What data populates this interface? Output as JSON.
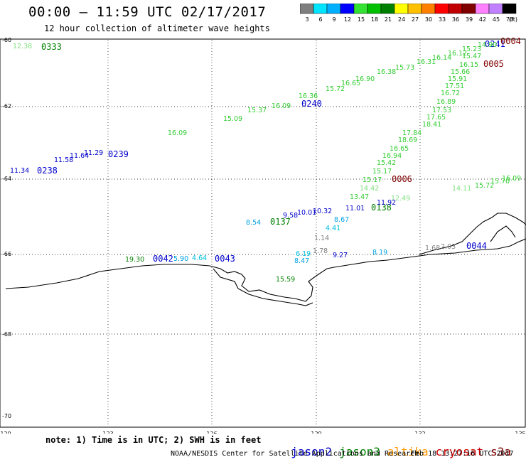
{
  "header": {
    "title": "00:00 – 11:59 UTC 02/17/2017",
    "subtitle": "12 hour collection of altimeter wave heights"
  },
  "colorbar": {
    "colors": [
      "#7f7f7f",
      "#00e5ff",
      "#00b0ff",
      "#0000ff",
      "#33e233",
      "#00c000",
      "#008000",
      "#ffff00",
      "#ffc000",
      "#ff8000",
      "#ff0000",
      "#c00000",
      "#800000",
      "#ff80ff",
      "#c080ff",
      "#000000"
    ],
    "labels": [
      "3",
      "6",
      "9",
      "12",
      "15",
      "18",
      "21",
      "24",
      "27",
      "30",
      "33",
      "36",
      "39",
      "42",
      "45",
      "70"
    ],
    "unit": "(ft)"
  },
  "axes": {
    "lon_ticks": [
      "120",
      "123",
      "126",
      "129",
      "132",
      "135"
    ],
    "lat_ticks": [
      "-60",
      "-62",
      "-64",
      "-66",
      "-68",
      "-70"
    ]
  },
  "footer": {
    "note": "note: 1) Time is in UTC; 2) SWH is in feet",
    "credit": "NOAA/NESDIS Center for Satellite Applications and Research",
    "timestamp": "Feb 18 13:27:16 UTC 2017"
  },
  "legend": [
    {
      "name": "jason2",
      "color": "#0000cc"
    },
    {
      "name": "jason3",
      "color": "#008000"
    },
    {
      "name": "altika",
      "color": "#ff9900"
    },
    {
      "name": "cryosat",
      "color": "#cc0000"
    },
    {
      "name": "s3a",
      "color": "#800000"
    }
  ],
  "track_labels": [
    {
      "text": "0333",
      "color": "#008000"
    },
    {
      "text": "0238",
      "color": "#0000cc"
    },
    {
      "text": "0239",
      "color": "#0000cc"
    },
    {
      "text": "0240",
      "color": "#0000cc"
    },
    {
      "text": "0241",
      "color": "#0000cc"
    },
    {
      "text": "0004",
      "color": "#800000"
    },
    {
      "text": "0005",
      "color": "#800000"
    },
    {
      "text": "0006",
      "color": "#800000"
    },
    {
      "text": "0137",
      "color": "#008000"
    },
    {
      "text": "0138",
      "color": "#008000"
    },
    {
      "text": "0042",
      "color": "#0000cc"
    },
    {
      "text": "0043",
      "color": "#0000cc"
    },
    {
      "text": "0044",
      "color": "#0000cc"
    }
  ],
  "wave_values": [
    {
      "text": "12.38",
      "color": "#80e080"
    },
    {
      "text": "11.34",
      "color": "#0000cc"
    },
    {
      "text": "11.58",
      "color": "#0000cc"
    },
    {
      "text": "11.64",
      "color": "#0000cc"
    },
    {
      "text": "11.29",
      "color": "#0000cc"
    },
    {
      "text": "16.09",
      "color": "#33cc33"
    },
    {
      "text": "15.09",
      "color": "#33cc33"
    },
    {
      "text": "15.37",
      "color": "#33cc33"
    },
    {
      "text": "16.09",
      "color": "#33cc33"
    },
    {
      "text": "16.36",
      "color": "#33cc33"
    },
    {
      "text": "15.72",
      "color": "#33cc33"
    },
    {
      "text": "16.65",
      "color": "#33cc33"
    },
    {
      "text": "16.90",
      "color": "#33cc33"
    },
    {
      "text": "16.38",
      "color": "#33cc33"
    },
    {
      "text": "15.73",
      "color": "#33cc33"
    },
    {
      "text": "16.31",
      "color": "#33cc33"
    },
    {
      "text": "16.14",
      "color": "#33cc33"
    },
    {
      "text": "16.12",
      "color": "#33cc33"
    },
    {
      "text": "15.23",
      "color": "#33cc33"
    },
    {
      "text": "14.90",
      "color": "#33cc33"
    },
    {
      "text": "15.47",
      "color": "#33cc33"
    },
    {
      "text": "16.15",
      "color": "#33cc33"
    },
    {
      "text": "15.66",
      "color": "#33cc33"
    },
    {
      "text": "15.91",
      "color": "#33cc33"
    },
    {
      "text": "17.51",
      "color": "#33cc33"
    },
    {
      "text": "16.72",
      "color": "#33cc33"
    },
    {
      "text": "16.89",
      "color": "#33cc33"
    },
    {
      "text": "17.53",
      "color": "#33cc33"
    },
    {
      "text": "17.65",
      "color": "#33cc33"
    },
    {
      "text": "18.41",
      "color": "#33cc33"
    },
    {
      "text": "17.84",
      "color": "#33cc33"
    },
    {
      "text": "18.69",
      "color": "#33cc33"
    },
    {
      "text": "16.65",
      "color": "#33cc33"
    },
    {
      "text": "16.94",
      "color": "#33cc33"
    },
    {
      "text": "15.42",
      "color": "#33cc33"
    },
    {
      "text": "15.17",
      "color": "#33cc33"
    },
    {
      "text": "15.17",
      "color": "#33cc33"
    },
    {
      "text": "14.42",
      "color": "#80e080"
    },
    {
      "text": "13.47",
      "color": "#33cc33"
    },
    {
      "text": "15.72",
      "color": "#33cc33"
    },
    {
      "text": "15.70",
      "color": "#33cc33"
    },
    {
      "text": "16.09",
      "color": "#33cc33"
    },
    {
      "text": "12.49",
      "color": "#80e080"
    },
    {
      "text": "14.11",
      "color": "#80e080"
    },
    {
      "text": "11.92",
      "color": "#0000cc"
    },
    {
      "text": "8.54",
      "color": "#00a0e0"
    },
    {
      "text": "9.58",
      "color": "#0000cc"
    },
    {
      "text": "10.01",
      "color": "#0000cc"
    },
    {
      "text": "10.32",
      "color": "#0000cc"
    },
    {
      "text": "11.01",
      "color": "#0000cc"
    },
    {
      "text": "8.67",
      "color": "#00a0e0"
    },
    {
      "text": "4.41",
      "color": "#00c0e0"
    },
    {
      "text": "1.14",
      "color": "#808080"
    },
    {
      "text": "1.78",
      "color": "#808080"
    },
    {
      "text": "6.19",
      "color": "#00c0e0"
    },
    {
      "text": "8.47",
      "color": "#00a0e0"
    },
    {
      "text": "9.27",
      "color": "#0000cc"
    },
    {
      "text": "8.19",
      "color": "#00a0e0"
    },
    {
      "text": "1.68",
      "color": "#808080"
    },
    {
      "text": "2.03",
      "color": "#808080"
    },
    {
      "text": "19.30",
      "color": "#008000"
    },
    {
      "text": "5.90",
      "color": "#00a0e0"
    },
    {
      "text": "4.64",
      "color": "#00c0e0"
    },
    {
      "text": "15.59",
      "color": "#008000"
    }
  ]
}
